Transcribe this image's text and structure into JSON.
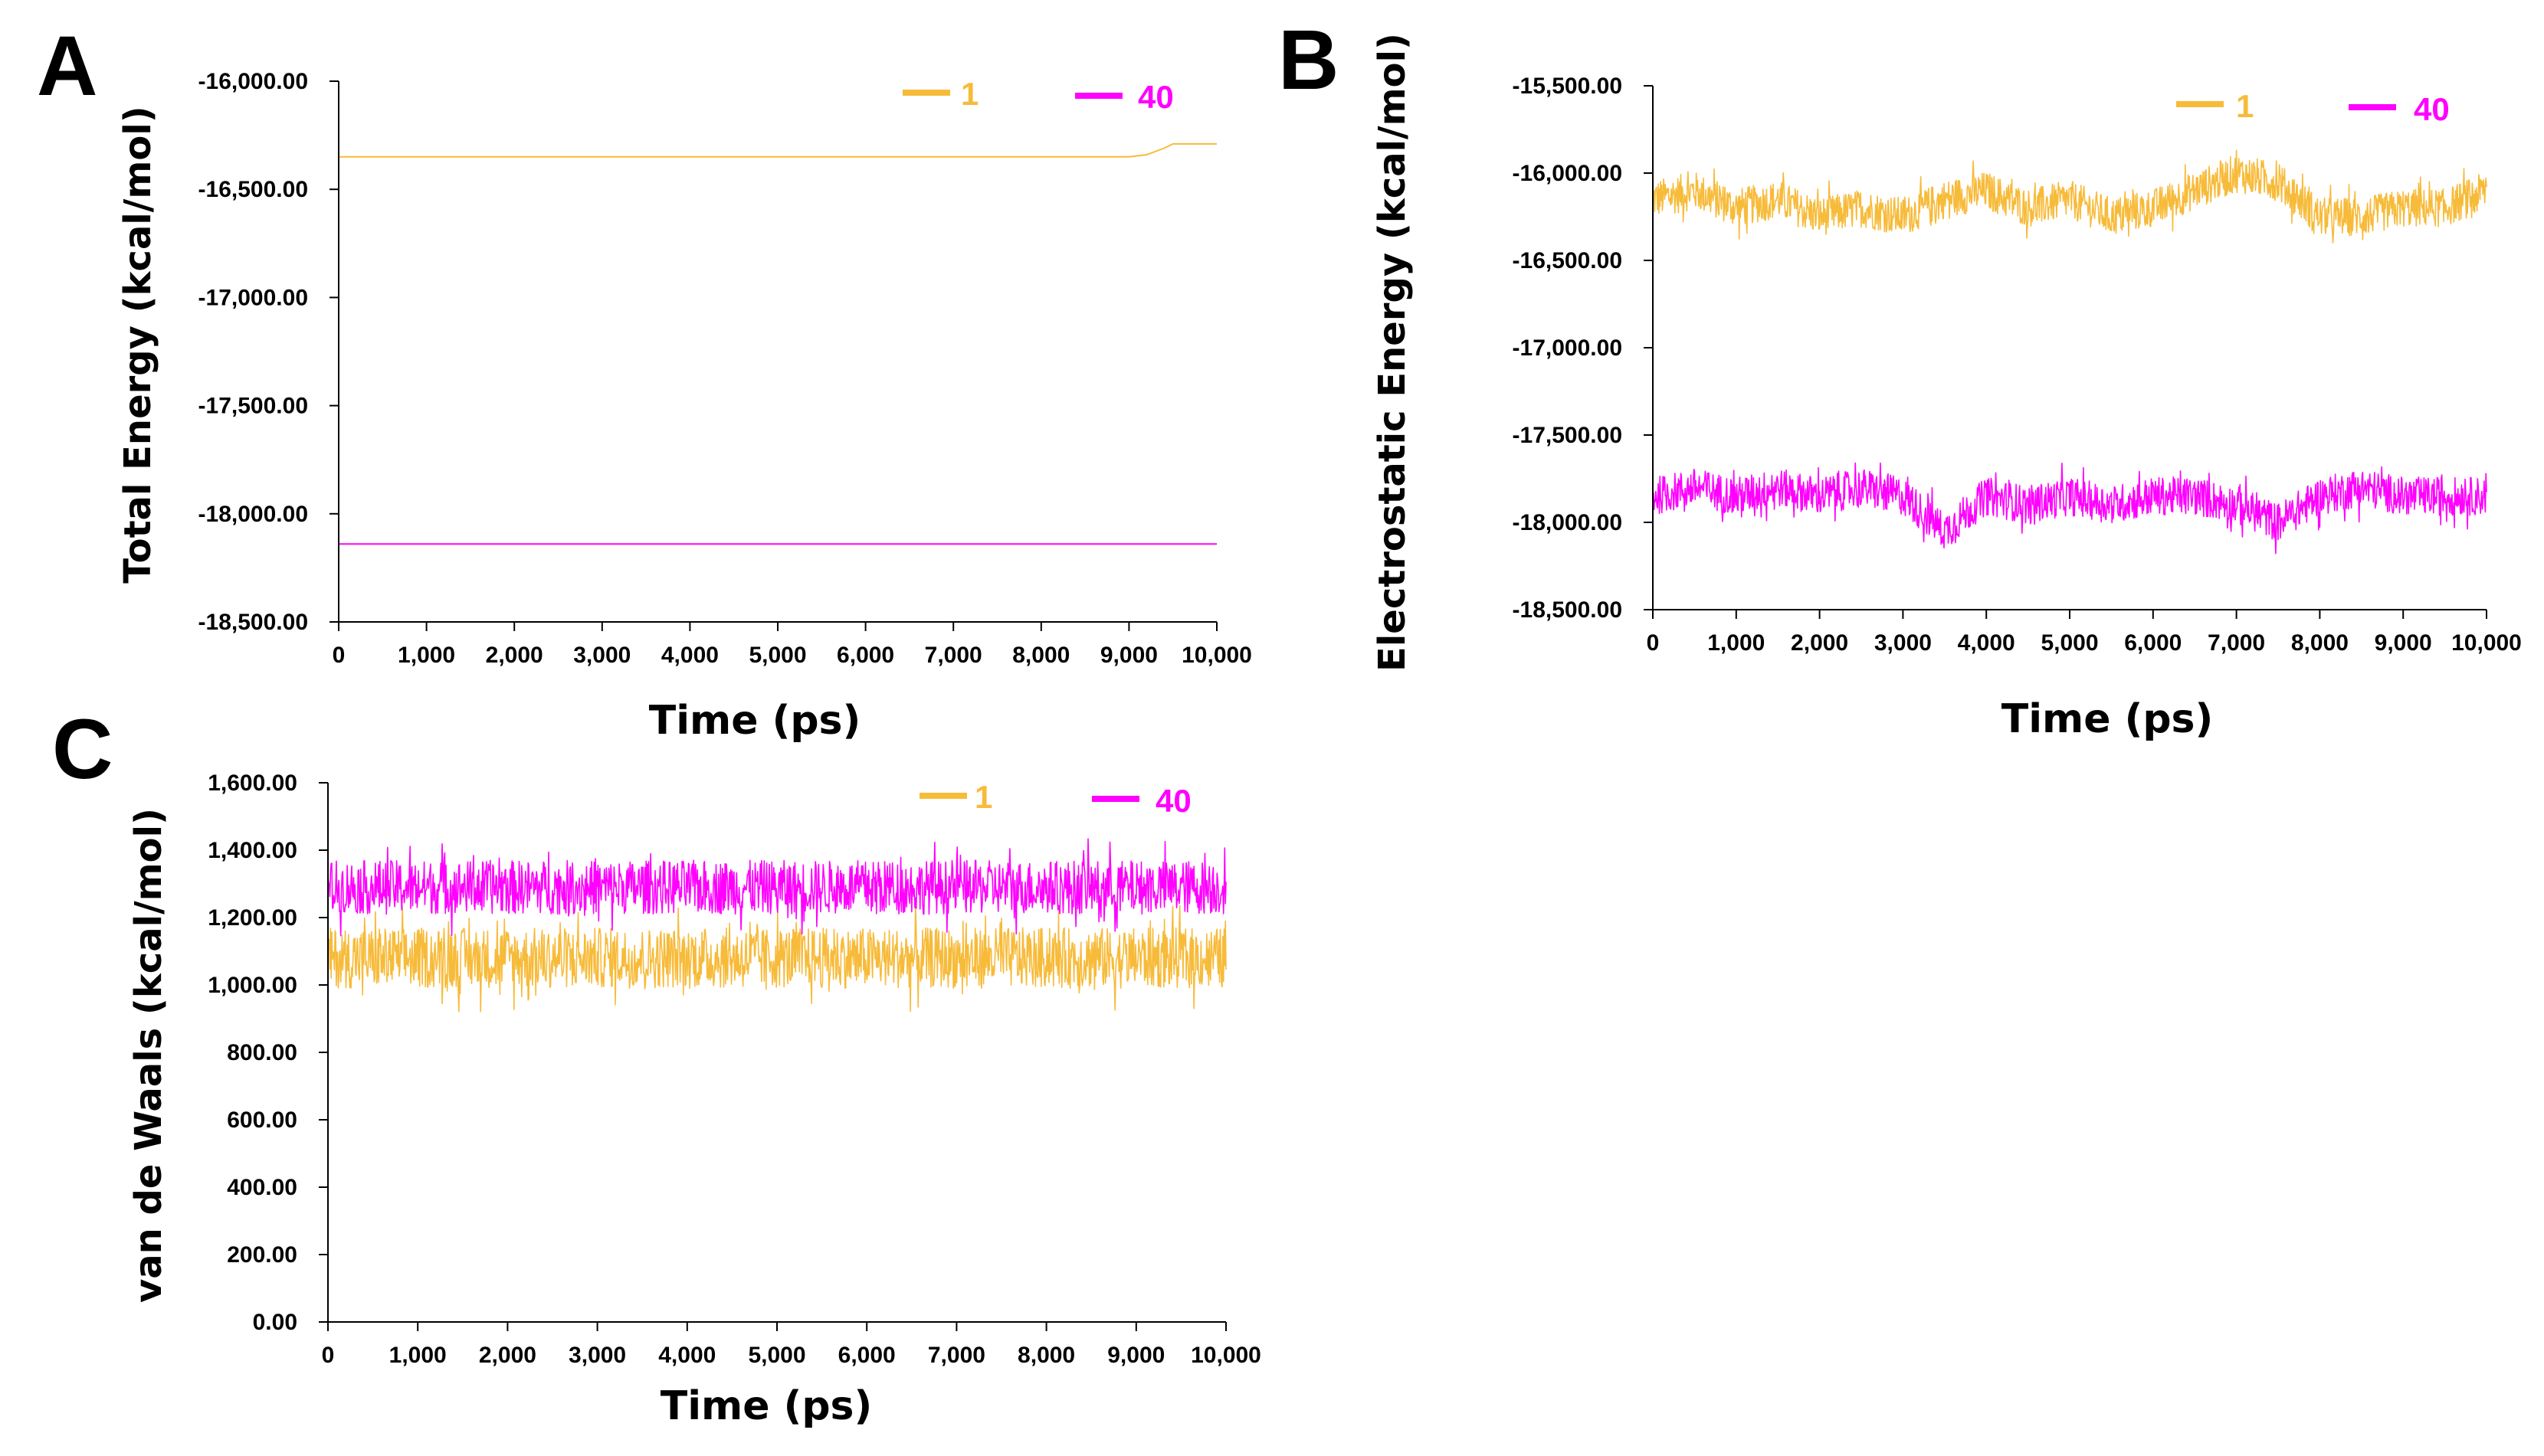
{
  "colors": {
    "series_1": "#F7BB3A",
    "series_40": "#FF00FF",
    "axis": "#000000"
  },
  "chart_data": [
    {
      "panel": "A",
      "type": "line",
      "title": "",
      "xlabel": "Time (ps)",
      "ylabel": "Total Energy (kcal/mol)",
      "xlim": [
        0,
        10000
      ],
      "ylim": [
        -18500,
        -16000
      ],
      "xticks": [
        0,
        1000,
        2000,
        3000,
        4000,
        5000,
        6000,
        7000,
        8000,
        9000,
        10000
      ],
      "xtick_labels": [
        "0",
        "1,000",
        "2,000",
        "3,000",
        "4,000",
        "5,000",
        "6,000",
        "7,000",
        "8,000",
        "9,000",
        "10,000"
      ],
      "yticks": [
        -16000,
        -16500,
        -17000,
        -17500,
        -18000,
        -18500
      ],
      "ytick_labels": [
        "-16,000.00",
        "-16,500.00",
        "-17,000.00",
        "-17,500.00",
        "-18,000.00",
        "-18,500.00"
      ],
      "legend": [
        "1",
        "40"
      ],
      "legend_position": "top-right",
      "grid": false,
      "series": [
        {
          "name": "1",
          "x": [
            0,
            9000,
            9200,
            9400,
            9500,
            10000
          ],
          "values": [
            -16350,
            -16350,
            -16340,
            -16310,
            -16290,
            -16290
          ]
        },
        {
          "name": "40",
          "x": [
            0,
            10000
          ],
          "values": [
            -18140,
            -18140
          ]
        }
      ]
    },
    {
      "panel": "B",
      "type": "line",
      "title": "",
      "xlabel": "Time (ps)",
      "ylabel": "Electrostatic Energy (kcal/mol)",
      "xlim": [
        0,
        10000
      ],
      "ylim": [
        -18500,
        -15500
      ],
      "xticks": [
        0,
        1000,
        2000,
        3000,
        4000,
        5000,
        6000,
        7000,
        8000,
        9000,
        10000
      ],
      "xtick_labels": [
        "0",
        "1,000",
        "2,000",
        "3,000",
        "4,000",
        "5,000",
        "6,000",
        "7,000",
        "8,000",
        "9,000",
        "10,000"
      ],
      "yticks": [
        -15500,
        -16000,
        -16500,
        -17000,
        -17500,
        -18000,
        -18500
      ],
      "ytick_labels": [
        "-15,500.00",
        "-16,000.00",
        "-16,500.00",
        "-17,000.00",
        "-17,500.00",
        "-18,000.00",
        "-18,500.00"
      ],
      "legend": [
        "1",
        "40"
      ],
      "legend_position": "top-right",
      "grid": false,
      "series": [
        {
          "name": "1",
          "x": [
            0,
            500,
            1000,
            1500,
            2000,
            2500,
            3000,
            3500,
            4000,
            4500,
            5000,
            5500,
            6000,
            6500,
            7000,
            7500,
            8000,
            8500,
            9000,
            9500,
            10000
          ],
          "values": [
            -16150,
            -16100,
            -16200,
            -16150,
            -16250,
            -16200,
            -16250,
            -16150,
            -16100,
            -16200,
            -16150,
            -16250,
            -16200,
            -16100,
            -16000,
            -16050,
            -16250,
            -16250,
            -16200,
            -16200,
            -16100
          ]
        },
        {
          "name": "40",
          "x": [
            0,
            500,
            1000,
            1500,
            2000,
            2500,
            3000,
            3500,
            4000,
            4500,
            5000,
            5500,
            6000,
            6500,
            7000,
            7500,
            8000,
            8500,
            9000,
            9500,
            10000
          ],
          "values": [
            -17850,
            -17800,
            -17850,
            -17800,
            -17850,
            -17800,
            -17850,
            -18050,
            -17850,
            -17900,
            -17850,
            -17900,
            -17850,
            -17850,
            -17900,
            -18000,
            -17850,
            -17800,
            -17850,
            -17850,
            -17850
          ]
        }
      ]
    },
    {
      "panel": "C",
      "type": "line",
      "title": "",
      "xlabel": "Time (ps)",
      "ylabel": "van de Waals (kcal/mol)",
      "xlim": [
        0,
        10000
      ],
      "ylim": [
        0,
        1600
      ],
      "xticks": [
        0,
        1000,
        2000,
        3000,
        4000,
        5000,
        6000,
        7000,
        8000,
        9000,
        10000
      ],
      "xtick_labels": [
        "0",
        "1,000",
        "2,000",
        "3,000",
        "4,000",
        "5,000",
        "6,000",
        "7,000",
        "8,000",
        "9,000",
        "10,000"
      ],
      "yticks": [
        0,
        200,
        400,
        600,
        800,
        1000,
        1200,
        1400,
        1600
      ],
      "ytick_labels": [
        "0.00",
        "200.00",
        "400.00",
        "600.00",
        "800.00",
        "1,000.00",
        "1,200.00",
        "1,400.00",
        "1,600.00"
      ],
      "legend": [
        "1",
        "40"
      ],
      "legend_position": "top-right",
      "grid": false,
      "series": [
        {
          "name": "1",
          "x": [
            0,
            10000
          ],
          "values": [
            1080,
            1080
          ],
          "noise_amplitude": 90
        },
        {
          "name": "40",
          "x": [
            0,
            10000
          ],
          "values": [
            1290,
            1290
          ],
          "noise_amplitude": 80
        }
      ]
    }
  ]
}
